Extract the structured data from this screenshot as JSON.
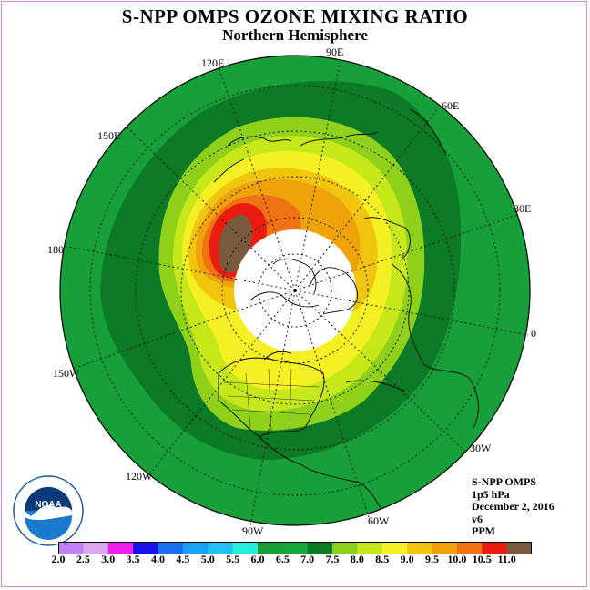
{
  "header": {
    "title": "S-NPP OMPS OZONE MIXING RATIO",
    "subtitle": "Northern Hemisphere"
  },
  "map": {
    "longitude_labels": [
      "90E",
      "60E",
      "30E",
      "0",
      "30W",
      "60W",
      "90W",
      "120W",
      "150W",
      "180",
      "150E",
      "120E"
    ],
    "colors": {
      "outer_green": "#17a03a",
      "dark_green": "#0d7a26",
      "light_green": "#8fd11a",
      "yellow_green": "#c6e71a",
      "yellow": "#f5f023",
      "gold": "#f1c50f",
      "orange": "#f0a20b",
      "dark_orange": "#ef7213",
      "red": "#ea1c10",
      "brown": "#7a5a3c",
      "missing": "#ffffff"
    }
  },
  "info": {
    "instrument": "S-NPP OMPS",
    "level": "1p5 hPa",
    "date": "December 2, 2016",
    "version": "v6",
    "units": "PPM"
  },
  "logo": {
    "text": "NOAA"
  },
  "colorbar": {
    "ticks": [
      "2.0",
      "2.5",
      "3.0",
      "3.5",
      "4.0",
      "4.5",
      "5.0",
      "5.5",
      "6.0",
      "6.5",
      "7.0",
      "7.5",
      "8.0",
      "8.5",
      "9.0",
      "9.5",
      "10.0",
      "10.5",
      "11.0"
    ],
    "colors": [
      "#c27ff2",
      "#dca8f2",
      "#f01ff0",
      "#1a10e8",
      "#1a6ef0",
      "#1aa0f5",
      "#1fc3f2",
      "#26eedc",
      "#17a03a",
      "#16a83c",
      "#0d7a26",
      "#8fd11a",
      "#c6e71a",
      "#f5f023",
      "#f1c50f",
      "#f0a20b",
      "#ef7213",
      "#ea1c10",
      "#7a5a3c"
    ]
  }
}
